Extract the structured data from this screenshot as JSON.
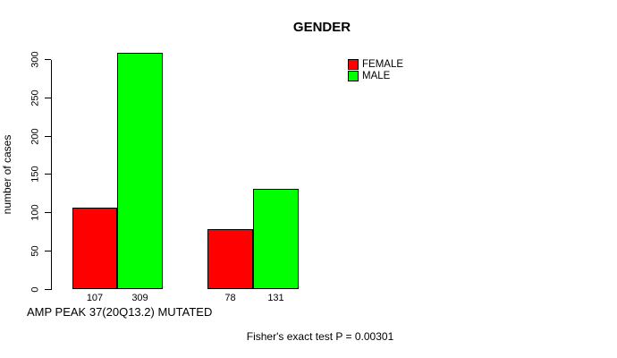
{
  "chart_data": {
    "type": "bar",
    "title": "GENDER",
    "ylabel": "number of cases",
    "xlabel": "AMP PEAK 37(20Q13.2) MUTATED",
    "annotation": "Fisher's exact test P = 0.00301",
    "ylim": [
      0,
      300
    ],
    "yticks": [
      0,
      50,
      100,
      150,
      200,
      250,
      300
    ],
    "grid": false,
    "legend_position": "top-right",
    "bar_value_labels_shown": true,
    "series": [
      {
        "name": "FEMALE",
        "color": "#ff0000",
        "values": [
          107,
          78
        ]
      },
      {
        "name": "MALE",
        "color": "#00ff00",
        "values": [
          309,
          131
        ]
      }
    ]
  }
}
